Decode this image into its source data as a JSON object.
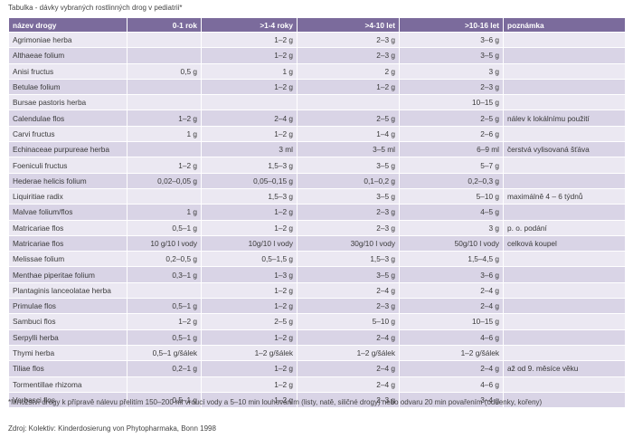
{
  "caption": "Tabulka - dávky vybraných rostlinných drog v pediatrii*",
  "columns": [
    "název drogy",
    "0-1 rok",
    ">1-4 roky",
    ">4-10 let",
    ">10-16 let",
    "poznámka"
  ],
  "rows": [
    [
      "Agrimoniae herba",
      "",
      "1–2 g",
      "2–3 g",
      "3–6 g",
      ""
    ],
    [
      "Althaeae folium",
      "",
      "1–2 g",
      "2–3 g",
      "3–5 g",
      ""
    ],
    [
      "Anisi fructus",
      "0,5 g",
      "1 g",
      "2 g",
      "3 g",
      ""
    ],
    [
      "Betulae folium",
      "",
      "1–2 g",
      "1–2 g",
      "2–3 g",
      ""
    ],
    [
      "Bursae pastoris herba",
      "",
      "",
      "",
      "10–15 g",
      ""
    ],
    [
      "Calendulae flos",
      "1–2 g",
      "2–4 g",
      "2–5 g",
      "2–5 g",
      "nálev k lokálnímu použití"
    ],
    [
      "Carvi fructus",
      "1 g",
      "1–2 g",
      "1–4 g",
      "2–6 g",
      ""
    ],
    [
      "Echinaceae purpureae herba",
      "",
      "3 ml",
      "3–5 ml",
      "6–9 ml",
      "čerstvá vylisovaná šťáva"
    ],
    [
      "Foeniculi fructus",
      "1–2 g",
      "1,5–3 g",
      "3–5 g",
      "5–7 g",
      ""
    ],
    [
      "Hederae helicis folium",
      "0,02–0,05 g",
      "0,05–0,15 g",
      "0,1–0,2 g",
      "0,2–0,3 g",
      ""
    ],
    [
      "Liquiritiae radix",
      "",
      "1,5–3 g",
      "3–5 g",
      "5–10 g",
      "maximálně 4 – 6 týdnů"
    ],
    [
      "Malvae folium/flos",
      "1 g",
      "1–2 g",
      "2–3 g",
      "4–5 g",
      ""
    ],
    [
      "Matricariae flos",
      "0,5–1 g",
      "1–2 g",
      "2–3 g",
      "3 g",
      "p. o. podání"
    ],
    [
      "Matricariae flos",
      "10 g/10 l vody",
      "10g/10 l vody",
      "30g/10 l vody",
      "50g/10 l vody",
      "celková koupel"
    ],
    [
      "Melissae folium",
      "0,2–0,5 g",
      "0,5–1,5 g",
      "1,5–3 g",
      "1,5–4,5 g",
      ""
    ],
    [
      "Menthae piperitae folium",
      "0,3–1 g",
      "1–3 g",
      "3–5 g",
      "3–6 g",
      ""
    ],
    [
      "Plantaginis lanceolatae herba",
      "",
      "1–2 g",
      "2–4 g",
      "2–4 g",
      ""
    ],
    [
      "Primulae flos",
      "0,5–1 g",
      "1–2 g",
      "2–3 g",
      "2–4 g",
      ""
    ],
    [
      "Sambuci flos",
      "1–2 g",
      "2–5 g",
      "5–10 g",
      "10–15 g",
      ""
    ],
    [
      "Serpylli herba",
      "0,5–1 g",
      "1–2 g",
      "2–4 g",
      "4–6 g",
      ""
    ],
    [
      "Thymi herba",
      "0,5–1 g/šálek",
      "1–2 g/šálek",
      "1–2 g/šálek",
      "1–2 g/šálek",
      ""
    ],
    [
      "Tiliae flos",
      "0,2–1 g",
      "1–2 g",
      "2–4 g",
      "2–4 g",
      "až od 9. měsíce věku"
    ],
    [
      "Tormentillae rhizoma",
      "",
      "1–2 g",
      "2–4 g",
      "4–6 g",
      ""
    ],
    [
      "Verbasci flos",
      "0,5–1 g",
      "1–2 g",
      "2–3 g",
      "3–4 g",
      ""
    ]
  ],
  "footnote": "*Množství drogy k přípravě nálevu přelitím 150–200 ml vroucí vody a 5–10 min louhováním (listy, natě, siličné drogy) nebo odvaru 20 min povařením (oddenky, kořeny)",
  "source": "Zdroj: Kolektiv: Kinderdosierung von Phytopharmaka, Bonn 1998"
}
